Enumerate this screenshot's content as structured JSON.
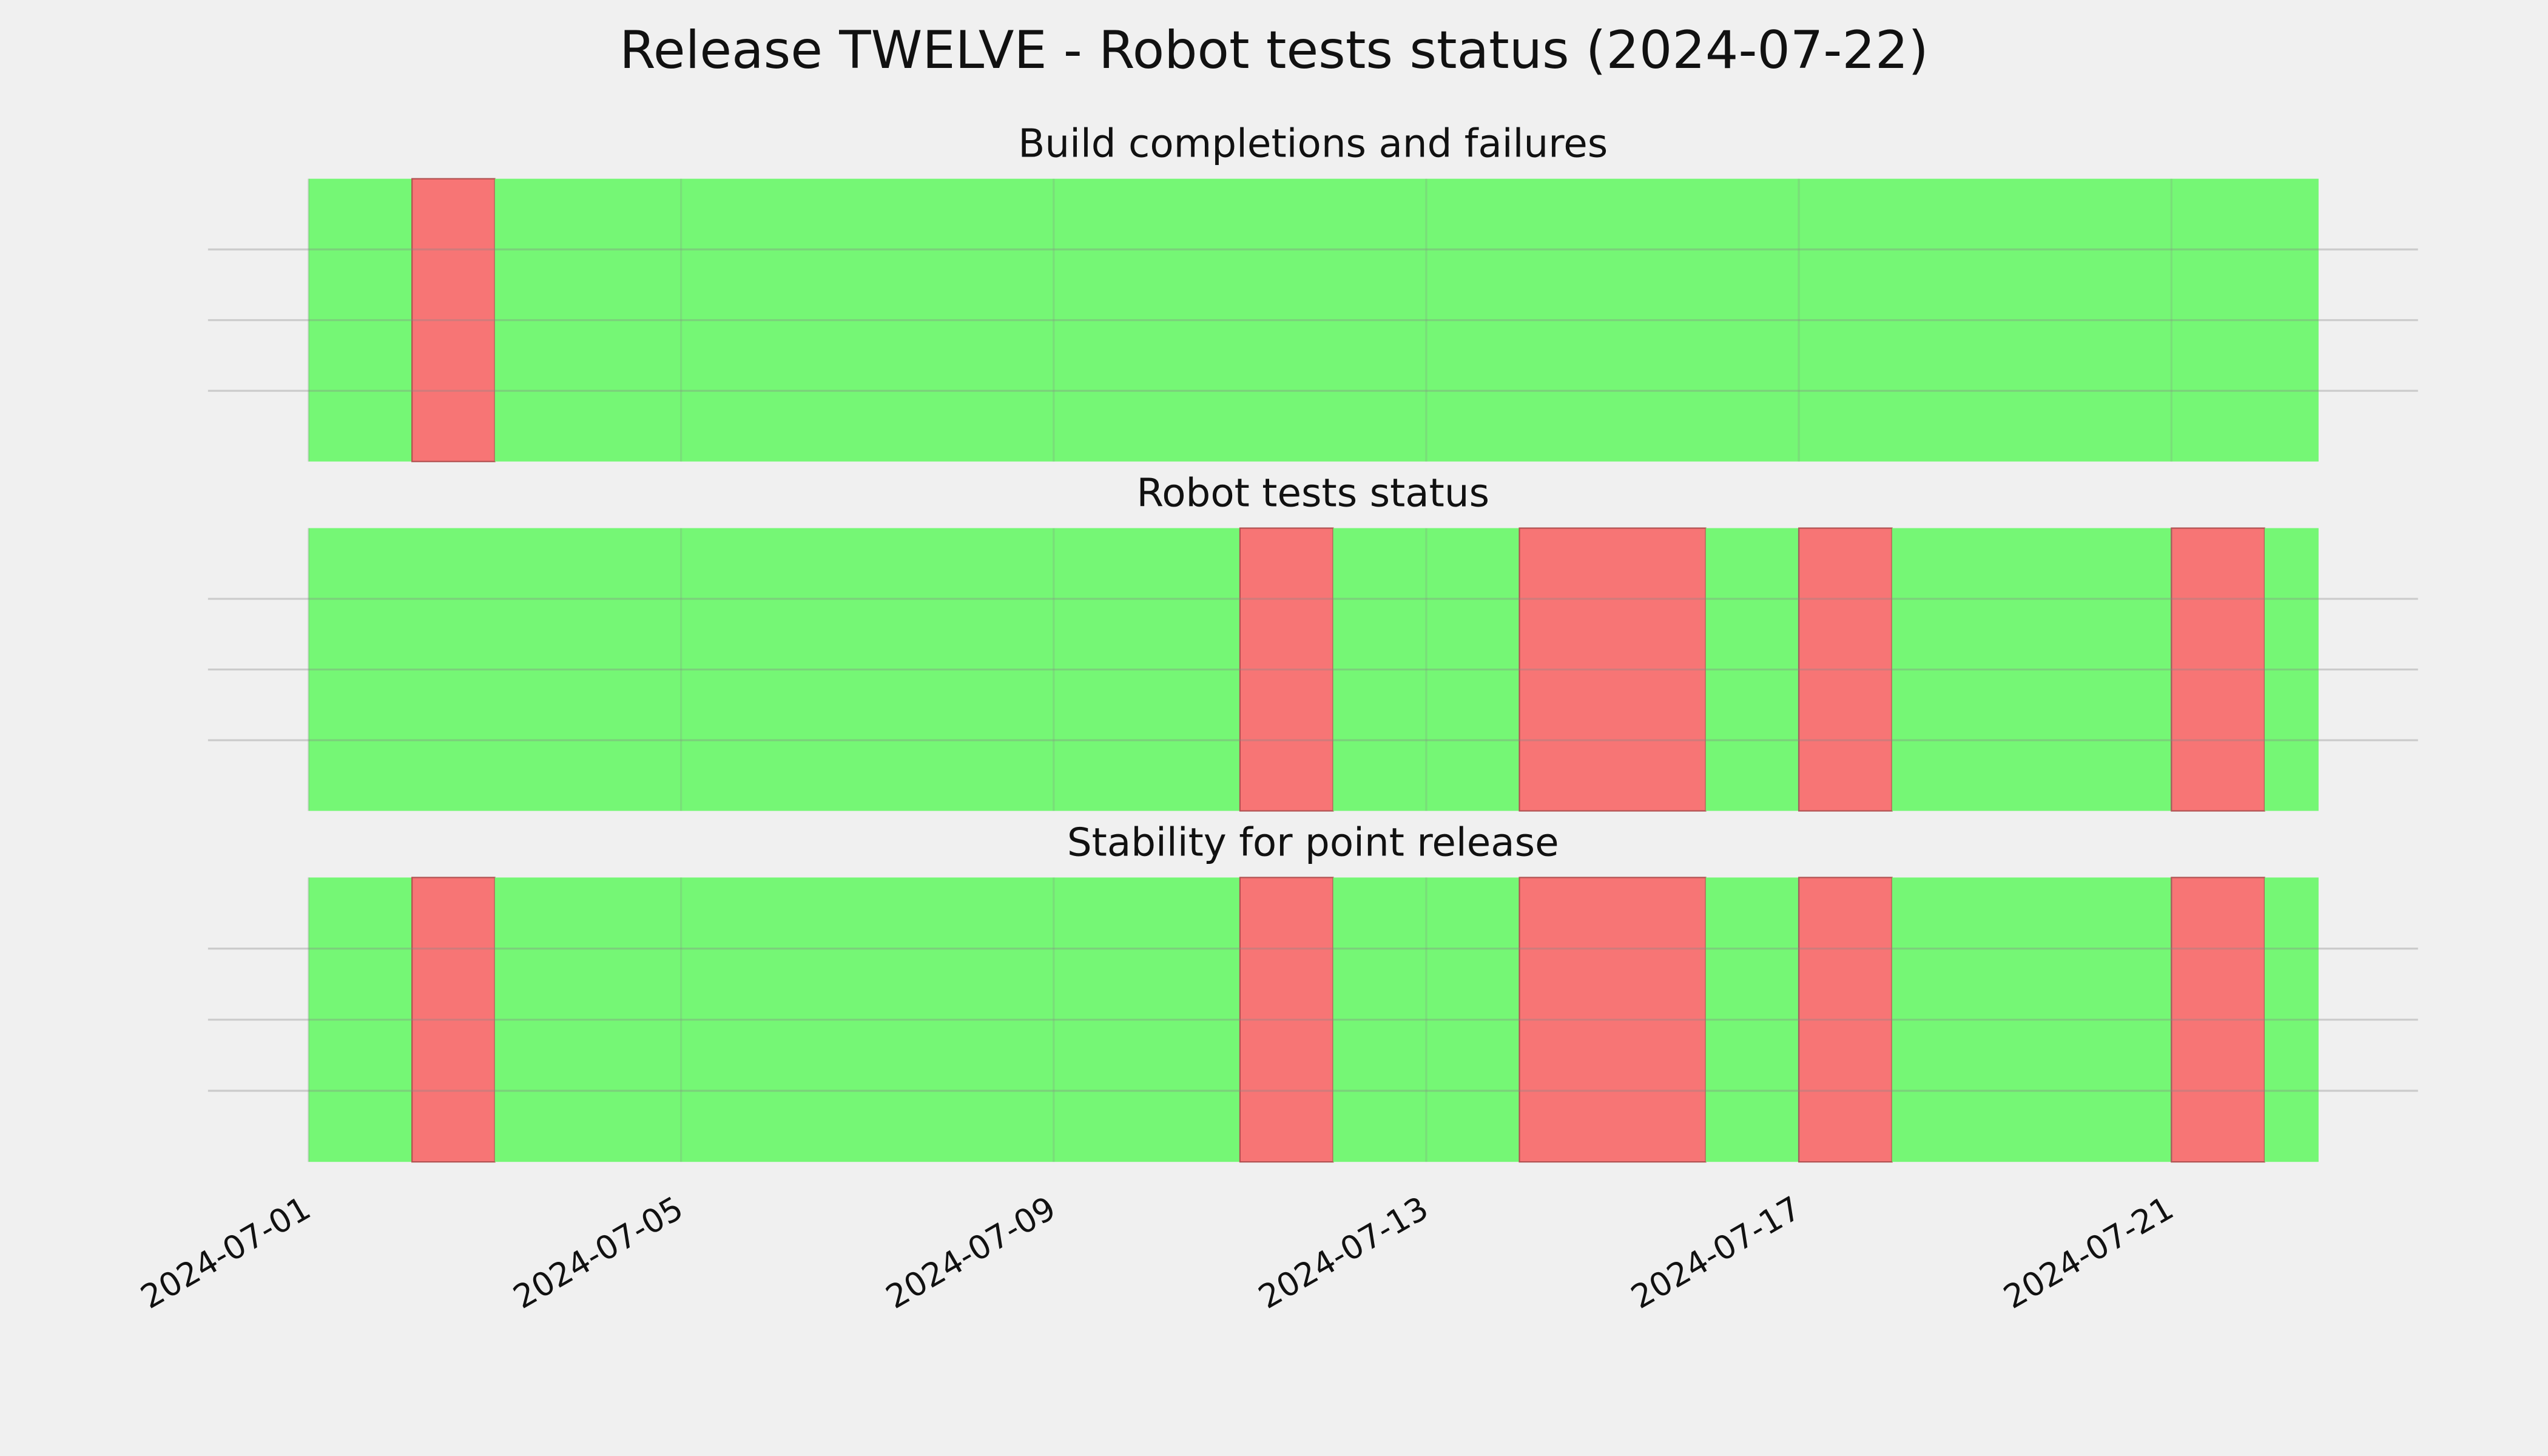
{
  "title": "Release TWELVE - Robot tests status (2024-07-22)",
  "chart_data": [
    {
      "type": "timeline",
      "title": "Build completions and failures",
      "xlim": [
        "2024-06-29T22:06",
        "2024-07-23T15:32"
      ],
      "ylim": [
        0,
        1
      ],
      "yticks": [
        0.25,
        0.5,
        0.75
      ],
      "xticks": [
        "2024-07-01",
        "2024-07-05",
        "2024-07-09",
        "2024-07-13",
        "2024-07-17",
        "2024-07-21"
      ],
      "grid": true,
      "segments": [
        {
          "start": "2024-07-01",
          "end": "2024-07-02T02:40",
          "color": "#75f775"
        },
        {
          "start": "2024-07-02T02:40",
          "end": "2024-07-03",
          "color": "#f77575"
        },
        {
          "start": "2024-07-03",
          "end": "2024-07-22T13:55",
          "color": "#75f775"
        }
      ]
    },
    {
      "type": "timeline",
      "title": "Robot tests status",
      "xlim": [
        "2024-06-29T22:06",
        "2024-07-23T15:32"
      ],
      "ylim": [
        0,
        1
      ],
      "yticks": [
        0.25,
        0.5,
        0.75
      ],
      "xticks": [
        "2024-07-01",
        "2024-07-05",
        "2024-07-09",
        "2024-07-13",
        "2024-07-17",
        "2024-07-21"
      ],
      "grid": true,
      "segments": [
        {
          "start": "2024-07-01",
          "end": "2024-07-11",
          "color": "#75f775"
        },
        {
          "start": "2024-07-11",
          "end": "2024-07-12",
          "color": "#f77575"
        },
        {
          "start": "2024-07-12",
          "end": "2024-07-14",
          "color": "#75f775"
        },
        {
          "start": "2024-07-14",
          "end": "2024-07-16",
          "color": "#f77575"
        },
        {
          "start": "2024-07-16",
          "end": "2024-07-17",
          "color": "#75f775"
        },
        {
          "start": "2024-07-17",
          "end": "2024-07-18",
          "color": "#f77575"
        },
        {
          "start": "2024-07-18",
          "end": "2024-07-21",
          "color": "#75f775"
        },
        {
          "start": "2024-07-21",
          "end": "2024-07-22",
          "color": "#f77575"
        },
        {
          "start": "2024-07-22",
          "end": "2024-07-22T13:55",
          "color": "#75f775"
        }
      ]
    },
    {
      "type": "timeline",
      "title": "Stability for point release",
      "xlim": [
        "2024-06-29T22:06",
        "2024-07-23T15:32"
      ],
      "ylim": [
        0,
        1
      ],
      "yticks": [
        0.25,
        0.5,
        0.75
      ],
      "xticks": [
        "2024-07-01",
        "2024-07-05",
        "2024-07-09",
        "2024-07-13",
        "2024-07-17",
        "2024-07-21"
      ],
      "grid": true,
      "show_xtick_labels": true,
      "segments": [
        {
          "start": "2024-07-01",
          "end": "2024-07-02T02:40",
          "color": "#75f775"
        },
        {
          "start": "2024-07-02T02:40",
          "end": "2024-07-03",
          "color": "#f77575"
        },
        {
          "start": "2024-07-03",
          "end": "2024-07-11",
          "color": "#75f775"
        },
        {
          "start": "2024-07-11",
          "end": "2024-07-12",
          "color": "#f77575"
        },
        {
          "start": "2024-07-12",
          "end": "2024-07-14",
          "color": "#75f775"
        },
        {
          "start": "2024-07-14",
          "end": "2024-07-16",
          "color": "#f77575"
        },
        {
          "start": "2024-07-16",
          "end": "2024-07-17",
          "color": "#75f775"
        },
        {
          "start": "2024-07-17",
          "end": "2024-07-18",
          "color": "#f77575"
        },
        {
          "start": "2024-07-18",
          "end": "2024-07-21",
          "color": "#75f775"
        },
        {
          "start": "2024-07-21",
          "end": "2024-07-22",
          "color": "#f77575"
        },
        {
          "start": "2024-07-22",
          "end": "2024-07-22T13:55",
          "color": "#75f775"
        }
      ]
    }
  ]
}
